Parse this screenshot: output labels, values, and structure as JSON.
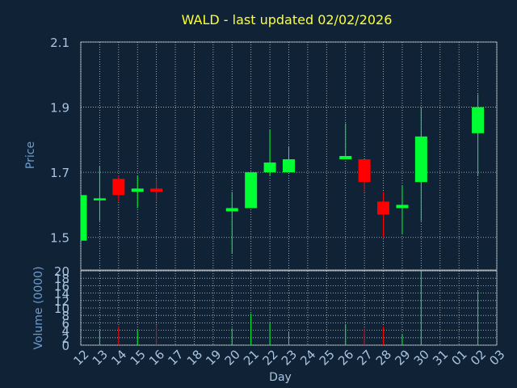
{
  "chart_data": {
    "type": "candlestick",
    "title": "WALD - last updated 02/02/2026",
    "xlabel": "Day",
    "grid": true,
    "x_ticks": [
      "12",
      "13",
      "14",
      "15",
      "16",
      "17",
      "18",
      "19",
      "20",
      "21",
      "22",
      "23",
      "24",
      "25",
      "26",
      "27",
      "28",
      "29",
      "30",
      "31",
      "01",
      "02",
      "03"
    ],
    "price": {
      "ylabel": "Price",
      "ylim": [
        1.4,
        2.1
      ],
      "y_ticks": [
        "1.5",
        "1.7",
        "1.9",
        "2.1"
      ],
      "candles": [
        {
          "day": "12",
          "open": 1.49,
          "high": 1.63,
          "low": 1.49,
          "close": 1.63
        },
        {
          "day": "13",
          "open": 1.62,
          "high": 1.72,
          "low": 1.55,
          "close": 1.62
        },
        {
          "day": "14",
          "open": 1.68,
          "high": 1.69,
          "low": 1.61,
          "close": 1.63
        },
        {
          "day": "15",
          "open": 1.64,
          "high": 1.69,
          "low": 1.59,
          "close": 1.65
        },
        {
          "day": "16",
          "open": 1.65,
          "high": 1.68,
          "low": 1.61,
          "close": 1.64
        },
        {
          "day": "20",
          "open": 1.58,
          "high": 1.64,
          "low": 1.45,
          "close": 1.59
        },
        {
          "day": "21",
          "open": 1.59,
          "high": 1.7,
          "low": 1.59,
          "close": 1.7
        },
        {
          "day": "22",
          "open": 1.7,
          "high": 1.83,
          "low": 1.69,
          "close": 1.73
        },
        {
          "day": "23",
          "open": 1.7,
          "high": 1.78,
          "low": 1.7,
          "close": 1.74
        },
        {
          "day": "26",
          "open": 1.74,
          "high": 1.85,
          "low": 1.74,
          "close": 1.75
        },
        {
          "day": "27",
          "open": 1.74,
          "high": 1.74,
          "low": 1.64,
          "close": 1.67
        },
        {
          "day": "28",
          "open": 1.61,
          "high": 1.64,
          "low": 1.5,
          "close": 1.57
        },
        {
          "day": "29",
          "open": 1.59,
          "high": 1.66,
          "low": 1.51,
          "close": 1.6
        },
        {
          "day": "30",
          "open": 1.67,
          "high": 1.9,
          "low": 1.55,
          "close": 1.81
        },
        {
          "day": "02",
          "open": 1.82,
          "high": 1.94,
          "low": 1.69,
          "close": 1.9
        }
      ]
    },
    "volume": {
      "ylabel": "Volume (0000)",
      "ylim": [
        0,
        20
      ],
      "y_ticks": [
        "0",
        "2",
        "4",
        "6",
        "8",
        "10",
        "12",
        "14",
        "16",
        "18",
        "20"
      ],
      "bars": [
        {
          "day": "12",
          "value": 0
        },
        {
          "day": "13",
          "value": 4,
          "direction": "up"
        },
        {
          "day": "14",
          "value": 5,
          "direction": "down"
        },
        {
          "day": "15",
          "value": 4,
          "direction": "up"
        },
        {
          "day": "16",
          "value": 5.5,
          "direction": "down"
        },
        {
          "day": "20",
          "value": 4.5,
          "direction": "up"
        },
        {
          "day": "21",
          "value": 8.5,
          "direction": "up"
        },
        {
          "day": "22",
          "value": 6,
          "direction": "up"
        },
        {
          "day": "23",
          "value": 3.5,
          "direction": "up"
        },
        {
          "day": "26",
          "value": 5.5,
          "direction": "up"
        },
        {
          "day": "27",
          "value": 4.5,
          "direction": "down"
        },
        {
          "day": "28",
          "value": 5,
          "direction": "down"
        },
        {
          "day": "29",
          "value": 3,
          "direction": "up"
        },
        {
          "day": "30",
          "value": 20,
          "direction": "up"
        },
        {
          "day": "02",
          "value": 14.5,
          "direction": "up"
        }
      ]
    },
    "colors": {
      "background": "#0f2236",
      "plot_background": "#0f2236",
      "title": "#ffff33",
      "axis_label": "#6d9ccc",
      "tick_label": "#a9c4e0",
      "grid": "#c8c8c8",
      "up": "#00ff33",
      "down": "#ff0000"
    }
  }
}
